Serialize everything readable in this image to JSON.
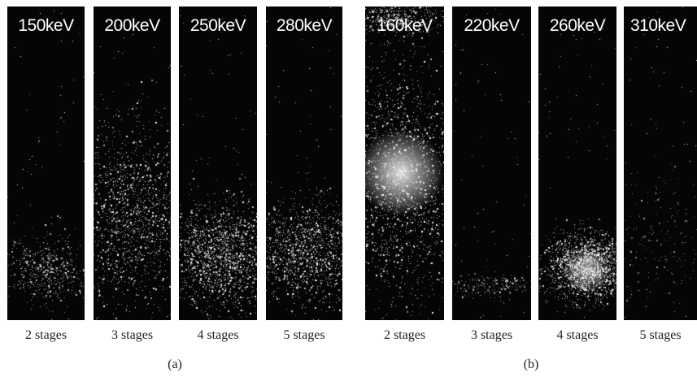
{
  "groups": [
    {
      "label": "(a)",
      "panels": [
        {
          "energy": "150keV",
          "stages": "2 stages"
        },
        {
          "energy": "200keV",
          "stages": "3 stages"
        },
        {
          "energy": "250keV",
          "stages": "4 stages"
        },
        {
          "energy": "280keV",
          "stages": "5 stages"
        }
      ]
    },
    {
      "label": "(b)",
      "panels": [
        {
          "energy": "160keV",
          "stages": "2 stages"
        },
        {
          "energy": "220keV",
          "stages": "3 stages"
        },
        {
          "energy": "260keV",
          "stages": "4 stages"
        },
        {
          "energy": "310keV",
          "stages": "5 stages"
        }
      ]
    }
  ],
  "colors": {
    "background": "#050505",
    "speckle": "#ffffff",
    "label_text": "#222222"
  }
}
